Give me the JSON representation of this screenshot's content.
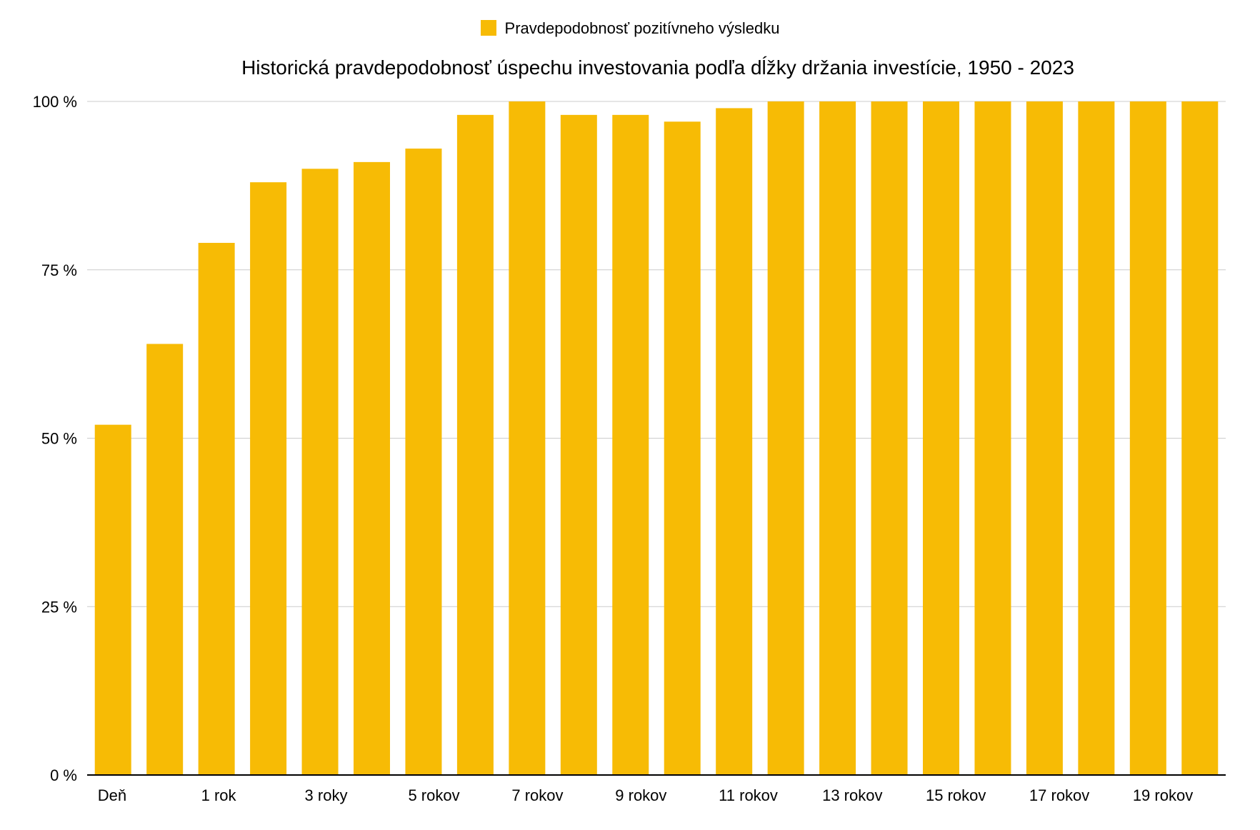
{
  "chart_data": {
    "type": "bar",
    "title": "Historická pravdepodobnosť úspechu investovania podľa dĺžky držania investície, 1950 - 2023",
    "legend": {
      "position": "top",
      "entries": [
        "Pravdepodobnosť pozitívneho výsledku"
      ]
    },
    "series": [
      {
        "name": "Pravdepodobnosť pozitívneho výsledku",
        "color": "#f7bb05",
        "values": [
          52,
          64,
          79,
          88,
          90,
          91,
          93,
          98,
          100,
          98,
          98,
          97,
          99,
          100,
          100,
          100,
          100,
          100,
          100,
          100,
          100,
          100
        ]
      }
    ],
    "categories": [
      "Deň",
      "",
      "1 rok",
      "",
      "3 roky",
      "",
      "5 rokov",
      "",
      "7 rokov",
      "",
      "9 rokov",
      "",
      "11 rokov",
      "",
      "13 rokov",
      "",
      "15 rokov",
      "",
      "17 rokov",
      "",
      "19 rokov",
      ""
    ],
    "y_ticks": [
      "0 %",
      "25 %",
      "50 %",
      "75 %",
      "100 %"
    ],
    "ylim": [
      0,
      100
    ],
    "grid": true,
    "colors": {
      "bar": "#f7bb05",
      "grid": "#cccccc",
      "axis": "#000000"
    }
  }
}
